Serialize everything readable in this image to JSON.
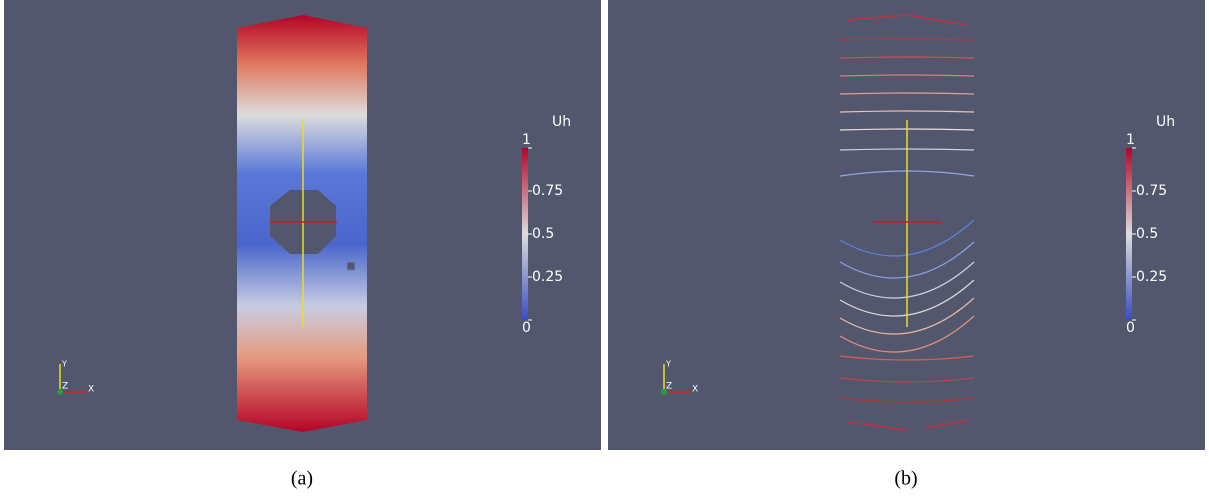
{
  "panels": [
    {
      "caption": "(a)",
      "colorbar": {
        "title": "Uh",
        "ticks": [
          1,
          0.75,
          0.5,
          0.25,
          0
        ]
      },
      "axes": {
        "x": "X",
        "y": "Y",
        "z": "Z"
      }
    },
    {
      "caption": "(b)",
      "colorbar": {
        "title": "Uh",
        "ticks": [
          1,
          0.75,
          0.5,
          0.25,
          0
        ]
      },
      "axes": {
        "x": "X",
        "y": "Y",
        "z": "Z"
      }
    }
  ]
}
